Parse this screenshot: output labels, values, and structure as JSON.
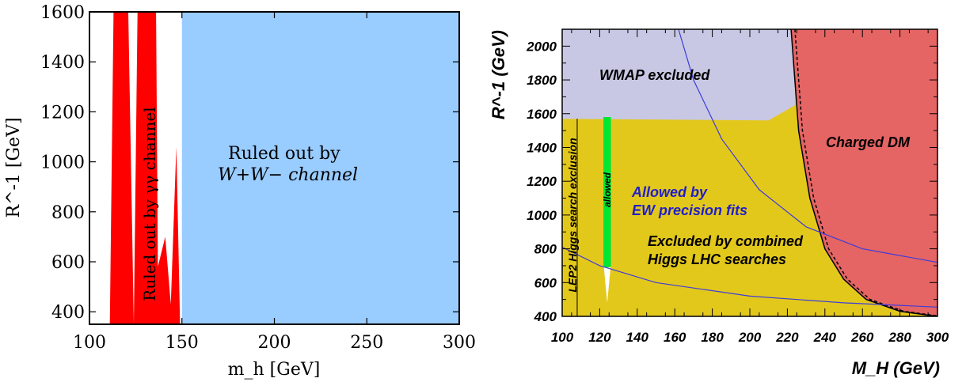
{
  "chart_data": [
    {
      "type": "area",
      "xlabel": "m_h [GeV]",
      "ylabel": "R^-1 [GeV]",
      "xlim": [
        100,
        300
      ],
      "ylim": [
        350,
        1600
      ],
      "xticks": [
        "100",
        "150",
        "200",
        "250",
        "300"
      ],
      "yticks": [
        "400",
        "600",
        "800",
        "1000",
        "1200",
        "1400",
        "1600"
      ],
      "grid": false,
      "colors": {
        "ww": "#99ccff",
        "gamma": "#ff0000",
        "axis": "#000000"
      },
      "annotations": {
        "ww_line1": "Ruled out by",
        "ww_line2": "W+W− channel",
        "gamma": "Ruled out by γγ channel"
      },
      "ww_region": {
        "x": [
          150,
          300
        ],
        "y": [
          350,
          1600
        ]
      },
      "gamma_region": [
        [
          111,
          350
        ],
        [
          113,
          1600
        ],
        [
          121,
          1600
        ],
        [
          124,
          350
        ],
        [
          126,
          1600
        ],
        [
          136,
          1600
        ],
        [
          137,
          580
        ],
        [
          141,
          700
        ],
        [
          144,
          430
        ],
        [
          147,
          1060
        ],
        [
          149,
          350
        ]
      ]
    },
    {
      "type": "area",
      "xlabel": "M_H (GeV)",
      "ylabel": "R^-1 (GeV)",
      "xlim": [
        100,
        300
      ],
      "ylim": [
        400,
        2100
      ],
      "xticks": [
        "100",
        "120",
        "140",
        "160",
        "180",
        "200",
        "220",
        "240",
        "260",
        "280",
        "300"
      ],
      "yticks": [
        "400",
        "600",
        "800",
        "1000",
        "1200",
        "1400",
        "1600",
        "1800",
        "2000"
      ],
      "grid": false,
      "colors": {
        "wmap": "#c8c8e4",
        "lhc": "#e3c81c",
        "charged": "#e56464",
        "allowed": "#00e632",
        "ew": "#3c3cdc"
      },
      "annotations": {
        "wmap": "WMAP excluded",
        "charged": "Charged DM",
        "ew_line1": "Allowed by",
        "ew_line2": "EW precision fits",
        "lhc_line1": "Excluded by combined",
        "lhc_line2": "Higgs LHC searches",
        "lep2": "LEP2 Higgs search exclusion",
        "allowed": "allowed"
      },
      "wmap_region": [
        [
          100,
          2100
        ],
        [
          224,
          2100
        ],
        [
          224,
          1650
        ],
        [
          210,
          1560
        ],
        [
          100,
          1570
        ]
      ],
      "charged_dm_boundary": [
        [
          222,
          2100
        ],
        [
          226,
          1500
        ],
        [
          232,
          1100
        ],
        [
          240,
          800
        ],
        [
          250,
          620
        ],
        [
          262,
          500
        ],
        [
          280,
          430
        ],
        [
          300,
          400
        ]
      ],
      "ew_curve_upper": [
        [
          162,
          2100
        ],
        [
          170,
          1800
        ],
        [
          185,
          1450
        ],
        [
          205,
          1150
        ],
        [
          230,
          930
        ],
        [
          260,
          800
        ],
        [
          300,
          720
        ]
      ],
      "ew_curve_lower": [
        [
          100,
          810
        ],
        [
          120,
          700
        ],
        [
          150,
          600
        ],
        [
          200,
          520
        ],
        [
          250,
          480
        ],
        [
          300,
          455
        ]
      ],
      "allowed_strip": {
        "x": [
          122,
          126
        ],
        "y": [
          700,
          1580
        ]
      }
    }
  ]
}
